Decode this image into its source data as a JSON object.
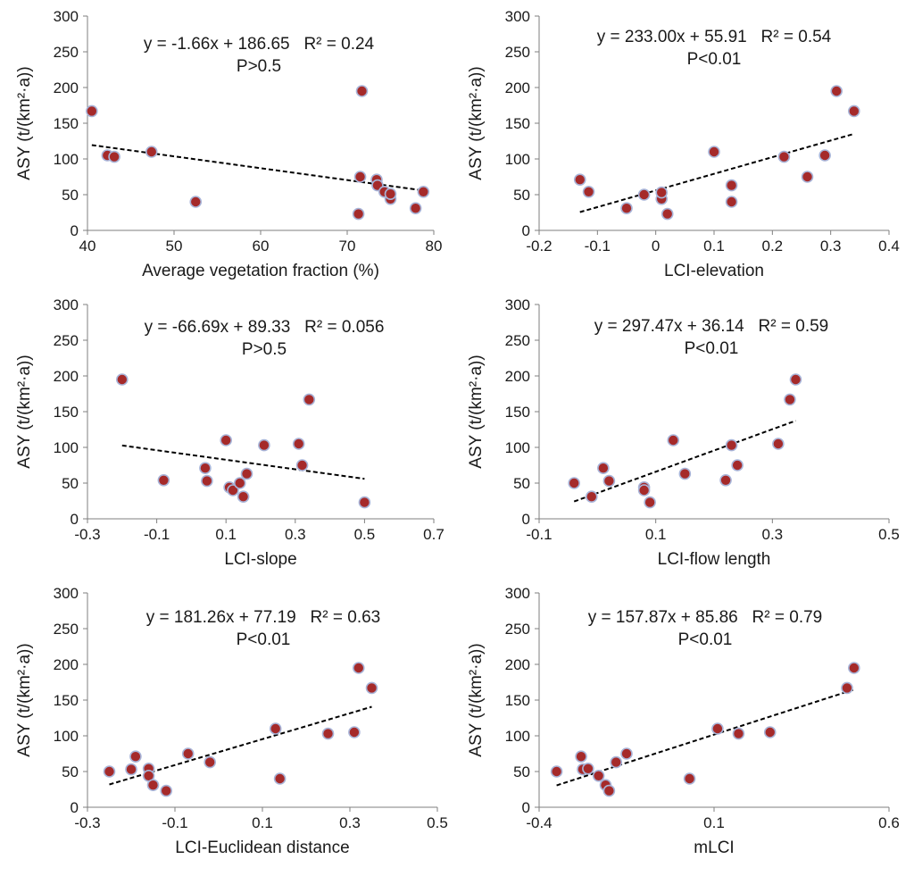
{
  "chart_data": [
    {
      "type": "scatter",
      "xlabel": "Average vegetation fraction (%)",
      "ylabel": "ASY (t/(km²·a))",
      "xlim": [
        40,
        80
      ],
      "xticks": [
        40,
        50,
        60,
        70,
        80
      ],
      "ylim": [
        0,
        300
      ],
      "yticks": [
        0,
        50,
        100,
        150,
        200,
        250,
        300
      ],
      "equation": "y = -1.66x + 186.65   R² = 0.24",
      "pvalue": "P>0.5",
      "trendline": {
        "slope": -1.66,
        "intercept": 186.65,
        "x_range": [
          40.5,
          78.8
        ]
      },
      "points": [
        {
          "x": 40.5,
          "y": 167
        },
        {
          "x": 42.3,
          "y": 105
        },
        {
          "x": 43.1,
          "y": 103
        },
        {
          "x": 47.4,
          "y": 110
        },
        {
          "x": 52.5,
          "y": 40
        },
        {
          "x": 71.3,
          "y": 23
        },
        {
          "x": 71.5,
          "y": 75
        },
        {
          "x": 71.7,
          "y": 195
        },
        {
          "x": 73.4,
          "y": 71
        },
        {
          "x": 73.5,
          "y": 63
        },
        {
          "x": 74.3,
          "y": 54
        },
        {
          "x": 75.0,
          "y": 44
        },
        {
          "x": 75.0,
          "y": 51
        },
        {
          "x": 77.9,
          "y": 31
        },
        {
          "x": 78.8,
          "y": 54
        }
      ]
    },
    {
      "type": "scatter",
      "xlabel": "LCI-elevation",
      "ylabel": "ASY (t/(km²·a))",
      "xlim": [
        -0.2,
        0.4
      ],
      "xticks": [
        -0.2,
        -0.1,
        0,
        0.1,
        0.2,
        0.3,
        0.4
      ],
      "ylim": [
        0,
        300
      ],
      "yticks": [
        0,
        50,
        100,
        150,
        200,
        250,
        300
      ],
      "equation": "y = 233.00x + 55.91   R² = 0.54",
      "pvalue": "P<0.01",
      "trendline": {
        "slope": 233.0,
        "intercept": 55.91,
        "x_range": [
          -0.13,
          0.34
        ]
      },
      "points": [
        {
          "x": -0.13,
          "y": 71
        },
        {
          "x": -0.115,
          "y": 54
        },
        {
          "x": -0.05,
          "y": 31
        },
        {
          "x": -0.02,
          "y": 50
        },
        {
          "x": 0.01,
          "y": 44
        },
        {
          "x": 0.01,
          "y": 53
        },
        {
          "x": 0.02,
          "y": 23
        },
        {
          "x": 0.1,
          "y": 110
        },
        {
          "x": 0.13,
          "y": 40
        },
        {
          "x": 0.13,
          "y": 63
        },
        {
          "x": 0.22,
          "y": 103
        },
        {
          "x": 0.26,
          "y": 75
        },
        {
          "x": 0.29,
          "y": 105
        },
        {
          "x": 0.31,
          "y": 195
        },
        {
          "x": 0.34,
          "y": 167
        }
      ]
    },
    {
      "type": "scatter",
      "xlabel": "LCI-slope",
      "ylabel": "ASY (t/(km²·a))",
      "xlim": [
        -0.3,
        0.7
      ],
      "xticks": [
        -0.3,
        -0.1,
        0.1,
        0.3,
        0.5,
        0.7
      ],
      "ylim": [
        0,
        300
      ],
      "yticks": [
        0,
        50,
        100,
        150,
        200,
        250,
        300
      ],
      "equation": "y = -66.69x + 89.33   R² = 0.056",
      "pvalue": "P>0.5",
      "trendline": {
        "slope": -66.69,
        "intercept": 89.33,
        "x_range": [
          -0.2,
          0.5
        ]
      },
      "points": [
        {
          "x": -0.2,
          "y": 195
        },
        {
          "x": -0.08,
          "y": 54
        },
        {
          "x": 0.04,
          "y": 71
        },
        {
          "x": 0.045,
          "y": 53
        },
        {
          "x": 0.1,
          "y": 110
        },
        {
          "x": 0.11,
          "y": 44
        },
        {
          "x": 0.12,
          "y": 40
        },
        {
          "x": 0.14,
          "y": 50
        },
        {
          "x": 0.15,
          "y": 31
        },
        {
          "x": 0.16,
          "y": 63
        },
        {
          "x": 0.21,
          "y": 103
        },
        {
          "x": 0.31,
          "y": 105
        },
        {
          "x": 0.32,
          "y": 75
        },
        {
          "x": 0.34,
          "y": 167
        },
        {
          "x": 0.5,
          "y": 23
        }
      ]
    },
    {
      "type": "scatter",
      "xlabel": "LCI-flow length",
      "ylabel": "ASY (t/(km²·a))",
      "xlim": [
        -0.1,
        0.5
      ],
      "xticks": [
        -0.1,
        0.1,
        0.3,
        0.5
      ],
      "ylim": [
        0,
        300
      ],
      "yticks": [
        0,
        50,
        100,
        150,
        200,
        250,
        300
      ],
      "equation": "y = 297.47x + 36.14   R² = 0.59",
      "pvalue": "P<0.01",
      "trendline": {
        "slope": 297.47,
        "intercept": 36.14,
        "x_range": [
          -0.04,
          0.34
        ]
      },
      "points": [
        {
          "x": -0.04,
          "y": 50
        },
        {
          "x": -0.01,
          "y": 31
        },
        {
          "x": 0.01,
          "y": 71
        },
        {
          "x": 0.02,
          "y": 53
        },
        {
          "x": 0.08,
          "y": 44
        },
        {
          "x": 0.08,
          "y": 40
        },
        {
          "x": 0.09,
          "y": 23
        },
        {
          "x": 0.13,
          "y": 110
        },
        {
          "x": 0.15,
          "y": 63
        },
        {
          "x": 0.22,
          "y": 54
        },
        {
          "x": 0.23,
          "y": 103
        },
        {
          "x": 0.24,
          "y": 75
        },
        {
          "x": 0.31,
          "y": 105
        },
        {
          "x": 0.33,
          "y": 167
        },
        {
          "x": 0.34,
          "y": 195
        }
      ]
    },
    {
      "type": "scatter",
      "xlabel": "LCI-Euclidean distance",
      "ylabel": "ASY (t/(km²·a))",
      "xlim": [
        -0.3,
        0.5
      ],
      "xticks": [
        -0.3,
        -0.1,
        0.1,
        0.3,
        0.5
      ],
      "ylim": [
        0,
        300
      ],
      "yticks": [
        0,
        50,
        100,
        150,
        200,
        250,
        300
      ],
      "equation": "y = 181.26x + 77.19   R² = 0.63",
      "pvalue": "P<0.01",
      "trendline": {
        "slope": 181.26,
        "intercept": 77.19,
        "x_range": [
          -0.25,
          0.35
        ]
      },
      "points": [
        {
          "x": -0.25,
          "y": 50
        },
        {
          "x": -0.2,
          "y": 53
        },
        {
          "x": -0.19,
          "y": 71
        },
        {
          "x": -0.16,
          "y": 54
        },
        {
          "x": -0.16,
          "y": 44
        },
        {
          "x": -0.15,
          "y": 31
        },
        {
          "x": -0.12,
          "y": 23
        },
        {
          "x": -0.07,
          "y": 75
        },
        {
          "x": -0.02,
          "y": 63
        },
        {
          "x": 0.13,
          "y": 110
        },
        {
          "x": 0.14,
          "y": 40
        },
        {
          "x": 0.25,
          "y": 103
        },
        {
          "x": 0.31,
          "y": 105
        },
        {
          "x": 0.32,
          "y": 195
        },
        {
          "x": 0.35,
          "y": 167
        }
      ]
    },
    {
      "type": "scatter",
      "xlabel": "mLCI",
      "ylabel": "ASY (t/(km²·a))",
      "xlim": [
        -0.4,
        0.6
      ],
      "xticks": [
        -0.4,
        0.1,
        0.6
      ],
      "ylim": [
        0,
        300
      ],
      "yticks": [
        0,
        50,
        100,
        150,
        200,
        250,
        300
      ],
      "equation": "y = 157.87x + 85.86   R² = 0.79",
      "pvalue": "P<0.01",
      "trendline": {
        "slope": 157.87,
        "intercept": 85.86,
        "x_range": [
          -0.35,
          0.5
        ]
      },
      "points": [
        {
          "x": -0.35,
          "y": 50
        },
        {
          "x": -0.28,
          "y": 71
        },
        {
          "x": -0.275,
          "y": 53
        },
        {
          "x": -0.26,
          "y": 54
        },
        {
          "x": -0.23,
          "y": 44
        },
        {
          "x": -0.21,
          "y": 31
        },
        {
          "x": -0.2,
          "y": 23
        },
        {
          "x": -0.18,
          "y": 63
        },
        {
          "x": -0.15,
          "y": 75
        },
        {
          "x": 0.03,
          "y": 40
        },
        {
          "x": 0.11,
          "y": 110
        },
        {
          "x": 0.17,
          "y": 103
        },
        {
          "x": 0.26,
          "y": 105
        },
        {
          "x": 0.48,
          "y": 167
        },
        {
          "x": 0.5,
          "y": 195
        }
      ]
    }
  ]
}
